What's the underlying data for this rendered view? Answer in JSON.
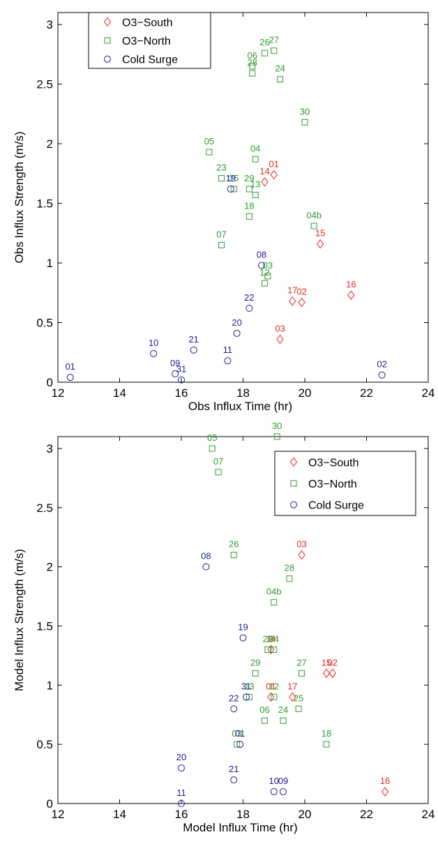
{
  "chart_data": [
    {
      "type": "scatter",
      "xlabel": "Obs Influx Time (hr)",
      "ylabel": "Obs Influx Strength (m/s)",
      "xlim": [
        12,
        24
      ],
      "ylim": [
        0,
        3.1
      ],
      "xticks": [
        "12",
        "14",
        "16",
        "18",
        "20",
        "22",
        "24"
      ],
      "yticks": [
        "0",
        "0.5",
        "1",
        "1.5",
        "2",
        "2.5",
        "3"
      ],
      "legend_position": "top-left",
      "series": [
        {
          "name": "O3−South",
          "color": "#e8261f",
          "marker": "diamond",
          "points": [
            {
              "label": "01",
              "x": 19.0,
              "y": 1.74
            },
            {
              "label": "14",
              "x": 18.7,
              "y": 1.68
            },
            {
              "label": "15",
              "x": 20.5,
              "y": 1.16
            },
            {
              "label": "17",
              "x": 19.6,
              "y": 0.68
            },
            {
              "label": "02",
              "x": 19.9,
              "y": 0.67
            },
            {
              "label": "16",
              "x": 21.5,
              "y": 0.73
            },
            {
              "label": "03",
              "x": 19.2,
              "y": 0.36
            }
          ]
        },
        {
          "name": "O3−North",
          "color": "#2f9a2f",
          "marker": "square",
          "points": [
            {
              "label": "26",
              "x": 18.7,
              "y": 2.76
            },
            {
              "label": "27",
              "x": 19.0,
              "y": 2.78
            },
            {
              "label": "06",
              "x": 18.3,
              "y": 2.65
            },
            {
              "label": "28",
              "x": 18.3,
              "y": 2.59
            },
            {
              "label": "24",
              "x": 19.2,
              "y": 2.54
            },
            {
              "label": "30",
              "x": 20.0,
              "y": 2.18
            },
            {
              "label": "05",
              "x": 16.9,
              "y": 1.93
            },
            {
              "label": "04",
              "x": 18.4,
              "y": 1.87
            },
            {
              "label": "23",
              "x": 17.3,
              "y": 1.71
            },
            {
              "label": "25",
              "x": 17.7,
              "y": 1.62
            },
            {
              "label": "29",
              "x": 18.2,
              "y": 1.62
            },
            {
              "label": "13",
              "x": 18.4,
              "y": 1.57
            },
            {
              "label": "18",
              "x": 18.2,
              "y": 1.39
            },
            {
              "label": "04b",
              "x": 20.3,
              "y": 1.31
            },
            {
              "label": "07",
              "x": 17.3,
              "y": 1.15
            },
            {
              "label": "03",
              "x": 18.8,
              "y": 0.89
            },
            {
              "label": "12",
              "x": 18.7,
              "y": 0.83
            }
          ]
        },
        {
          "name": "Cold Surge",
          "color": "#1c1c96",
          "marker": "circle",
          "points": [
            {
              "label": "19",
              "x": 17.6,
              "y": 1.62
            },
            {
              "label": "08",
              "x": 18.6,
              "y": 0.98
            },
            {
              "label": "22",
              "x": 18.2,
              "y": 0.62
            },
            {
              "label": "20",
              "x": 17.8,
              "y": 0.41
            },
            {
              "label": "21",
              "x": 16.4,
              "y": 0.27
            },
            {
              "label": "10",
              "x": 15.1,
              "y": 0.24
            },
            {
              "label": "11",
              "x": 17.5,
              "y": 0.18
            },
            {
              "label": "09",
              "x": 15.8,
              "y": 0.07
            },
            {
              "label": "31",
              "x": 16.0,
              "y": 0.02
            },
            {
              "label": "01",
              "x": 12.4,
              "y": 0.04
            },
            {
              "label": "02",
              "x": 22.5,
              "y": 0.06
            }
          ]
        }
      ]
    },
    {
      "type": "scatter",
      "xlabel": "Model Influx Time (hr)",
      "ylabel": "Model Influx Strength (m/s)",
      "xlim": [
        12,
        24
      ],
      "ylim": [
        0,
        3.1
      ],
      "xticks": [
        "12",
        "14",
        "16",
        "18",
        "20",
        "22",
        "24"
      ],
      "yticks": [
        "0",
        "0.5",
        "1",
        "1.5",
        "2",
        "2.5",
        "3"
      ],
      "legend_position": "top-right",
      "series": [
        {
          "name": "O3−South",
          "color": "#e8261f",
          "marker": "diamond",
          "points": [
            {
              "label": "03",
              "x": 19.9,
              "y": 2.1
            },
            {
              "label": "14",
              "x": 18.9,
              "y": 1.3
            },
            {
              "label": "15",
              "x": 20.7,
              "y": 1.1
            },
            {
              "label": "02",
              "x": 20.9,
              "y": 1.1
            },
            {
              "label": "01",
              "x": 18.9,
              "y": 0.9
            },
            {
              "label": "17",
              "x": 19.6,
              "y": 0.9
            },
            {
              "label": "16",
              "x": 22.6,
              "y": 0.1
            }
          ]
        },
        {
          "name": "O3−North",
          "color": "#2f9a2f",
          "marker": "square",
          "points": [
            {
              "label": "30",
              "x": 19.1,
              "y": 3.1
            },
            {
              "label": "05",
              "x": 17.0,
              "y": 3.0
            },
            {
              "label": "07",
              "x": 17.2,
              "y": 2.8
            },
            {
              "label": "26",
              "x": 17.7,
              "y": 2.1
            },
            {
              "label": "28",
              "x": 19.5,
              "y": 1.9
            },
            {
              "label": "04b",
              "x": 19.0,
              "y": 1.7
            },
            {
              "label": "23",
              "x": 18.8,
              "y": 1.3
            },
            {
              "label": "04",
              "x": 19.0,
              "y": 1.3
            },
            {
              "label": "27",
              "x": 19.9,
              "y": 1.1
            },
            {
              "label": "29",
              "x": 18.4,
              "y": 1.1
            },
            {
              "label": "13",
              "x": 18.2,
              "y": 0.9
            },
            {
              "label": "12",
              "x": 19.0,
              "y": 0.9
            },
            {
              "label": "25",
              "x": 19.8,
              "y": 0.8
            },
            {
              "label": "24",
              "x": 19.3,
              "y": 0.7
            },
            {
              "label": "06",
              "x": 18.7,
              "y": 0.7
            },
            {
              "label": "18",
              "x": 20.7,
              "y": 0.5
            },
            {
              "label": "03",
              "x": 17.8,
              "y": 0.5
            }
          ]
        },
        {
          "name": "Cold Surge",
          "color": "#1c1c96",
          "marker": "circle",
          "points": [
            {
              "label": "08",
              "x": 16.8,
              "y": 2.0
            },
            {
              "label": "19",
              "x": 18.0,
              "y": 1.4
            },
            {
              "label": "31",
              "x": 18.1,
              "y": 0.9
            },
            {
              "label": "22",
              "x": 17.7,
              "y": 0.8
            },
            {
              "label": "01",
              "x": 17.9,
              "y": 0.5
            },
            {
              "label": "20",
              "x": 16.0,
              "y": 0.3
            },
            {
              "label": "21",
              "x": 17.7,
              "y": 0.2
            },
            {
              "label": "10",
              "x": 19.0,
              "y": 0.1
            },
            {
              "label": "09",
              "x": 19.3,
              "y": 0.1
            },
            {
              "label": "11",
              "x": 16.0,
              "y": 0.0
            }
          ]
        }
      ]
    }
  ]
}
